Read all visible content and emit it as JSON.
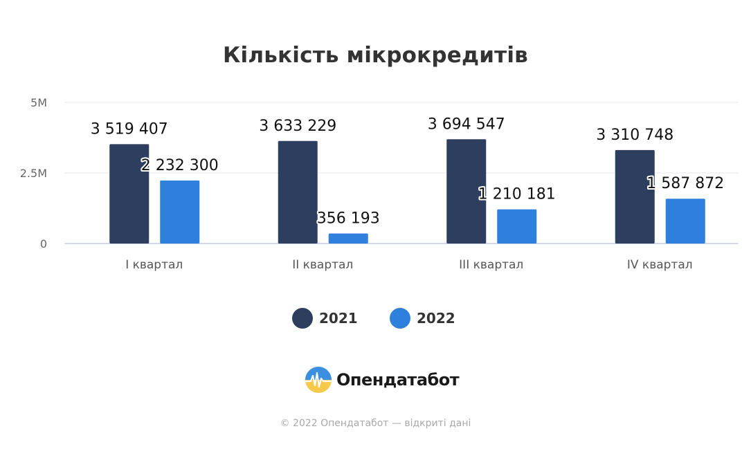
{
  "chart_data": {
    "type": "bar",
    "title": "Кількість мікрокредитів",
    "categories": [
      "I квартал",
      "II квартал",
      "III квартал",
      "IV квартал"
    ],
    "series": [
      {
        "name": "2021",
        "color": "#2d3e5e",
        "values": [
          3519407,
          3633229,
          3694547,
          3310748
        ],
        "labels": [
          "3 519 407",
          "3 633 229",
          "3 694 547",
          "3 310 748"
        ]
      },
      {
        "name": "2022",
        "color": "#2f7fdc",
        "values": [
          2232300,
          356193,
          1210181,
          1587872
        ],
        "labels": [
          "2 232 300",
          "356 193",
          "1 210 181",
          "1 587 872"
        ]
      }
    ],
    "yticks": [
      {
        "value": 0,
        "label": "0"
      },
      {
        "value": 2500000,
        "label": "2.5M"
      },
      {
        "value": 5000000,
        "label": "5M"
      }
    ],
    "ylim": [
      0,
      5000000
    ],
    "grid": true,
    "legend": "bottom-center"
  },
  "brand": {
    "name": "Опендатабот",
    "icon": "opendatabot-logo-icon"
  },
  "footer": {
    "text": "© 2022 Опендатабот — відкриті дані"
  }
}
